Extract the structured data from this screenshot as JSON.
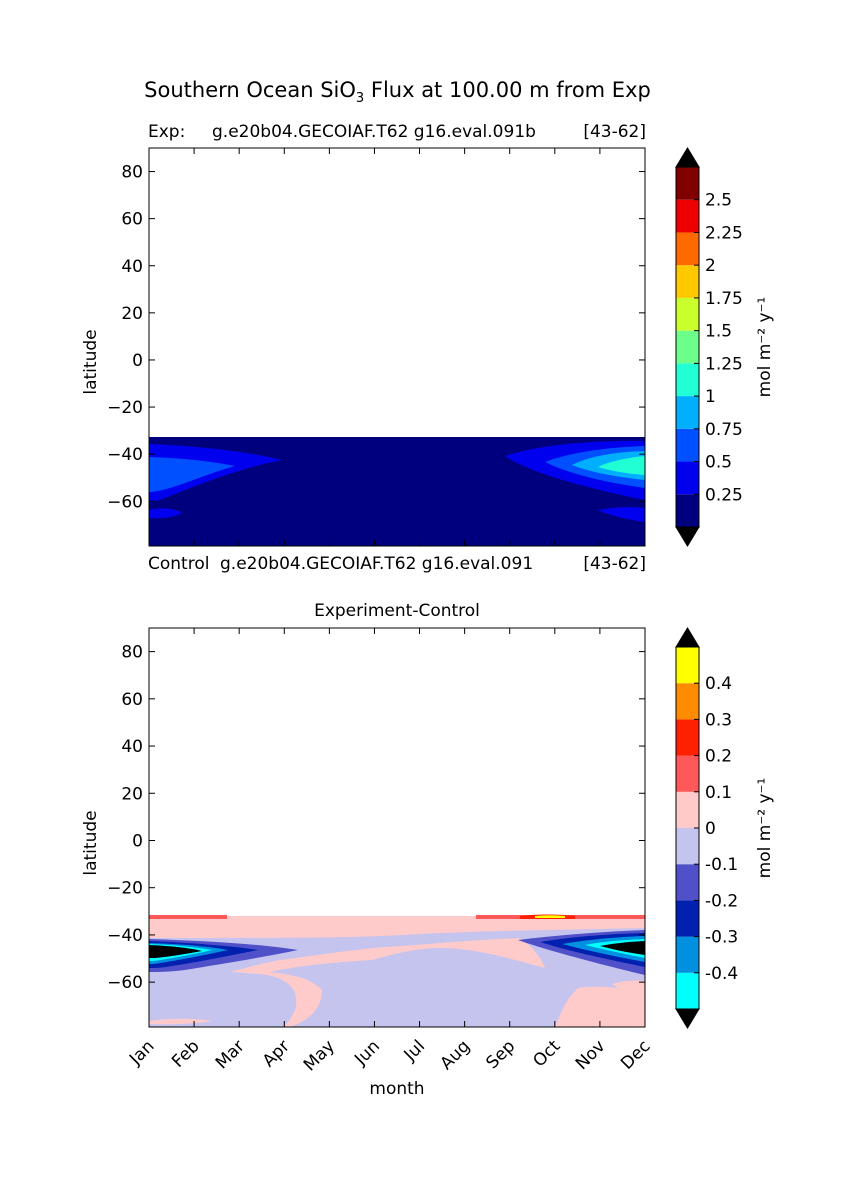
{
  "title_parts": {
    "pre": "Southern Ocean SiO",
    "sub": "3",
    "post": " Flux at 100.00 m from Exp"
  },
  "panels": {
    "top": {
      "left_title": "Exp:",
      "center_title": "g.e20b04.GECOIAF.T62 g16.eval.091b",
      "right_title": "[43-62]"
    },
    "bottom": {
      "left_title": "Control",
      "center_title": "g.e20b04.GECOIAF.T62 g16.eval.091",
      "right_title": "[43-62]"
    },
    "diff": {
      "center_title": "Experiment-Control"
    }
  },
  "chart_data": [
    {
      "type": "contourf",
      "name": "exp",
      "ylabel": "latitude",
      "xlabel": "",
      "y_ticks": [
        80,
        60,
        40,
        20,
        0,
        -20,
        -40,
        -60
      ],
      "y_tick_labels": [
        "80",
        "60",
        "40",
        "20",
        "0",
        "−20",
        "−40",
        "−60"
      ],
      "ylim": [
        -79,
        90
      ],
      "xlim": [
        0,
        11
      ],
      "data_extent_lat": [
        -79,
        -33
      ],
      "colorbar": {
        "label": "mol m⁻² y⁻¹",
        "levels": [
          0.0,
          0.25,
          0.5,
          0.75,
          1.0,
          1.25,
          1.5,
          1.75,
          2.0,
          2.25,
          2.5,
          2.75
        ],
        "tick_labels": [
          "0.25",
          "0.5",
          "0.75",
          "1",
          "1.25",
          "1.5",
          "1.75",
          "2",
          "2.25",
          "2.5"
        ],
        "colors": [
          "#00007f",
          "#0000ee",
          "#0050ff",
          "#00b0ff",
          "#21ffd4",
          "#6dff8a",
          "#caff2d",
          "#ffc800",
          "#ff6a00",
          "#ee0000",
          "#7f0000"
        ],
        "extend_colors": [
          "#000000",
          "#000000"
        ]
      }
    },
    {
      "type": "contourf",
      "name": "experiment_minus_control",
      "ylabel": "latitude",
      "xlabel": "month",
      "x_tick_labels": [
        "Jan",
        "Feb",
        "Mar",
        "Apr",
        "May",
        "Jun",
        "Jul",
        "Aug",
        "Sep",
        "Oct",
        "Nov",
        "Dec"
      ],
      "y_ticks": [
        80,
        60,
        40,
        20,
        0,
        -20,
        -40,
        -60
      ],
      "y_tick_labels": [
        "80",
        "60",
        "40",
        "20",
        "0",
        "−20",
        "−40",
        "−60"
      ],
      "ylim": [
        -79,
        90
      ],
      "xlim": [
        0,
        11
      ],
      "data_extent_lat": [
        -79,
        -33
      ],
      "colorbar": {
        "label": "mol m⁻² y⁻¹",
        "levels": [
          -0.5,
          -0.4,
          -0.3,
          -0.2,
          -0.1,
          0.0,
          0.1,
          0.2,
          0.3,
          0.4,
          0.5
        ],
        "tick_labels": [
          "-0.4",
          "-0.3",
          "-0.2",
          "-0.1",
          "0",
          "0.1",
          "0.2",
          "0.3",
          "0.4"
        ],
        "colors": [
          "#00ffff",
          "#0090e0",
          "#0020b0",
          "#5050c8",
          "#c4c4ee",
          "#ffcaca",
          "#ff5858",
          "#ff2000",
          "#ff8c00",
          "#ffff00"
        ],
        "extend_colors": [
          "#000000",
          "#000000"
        ]
      }
    }
  ]
}
